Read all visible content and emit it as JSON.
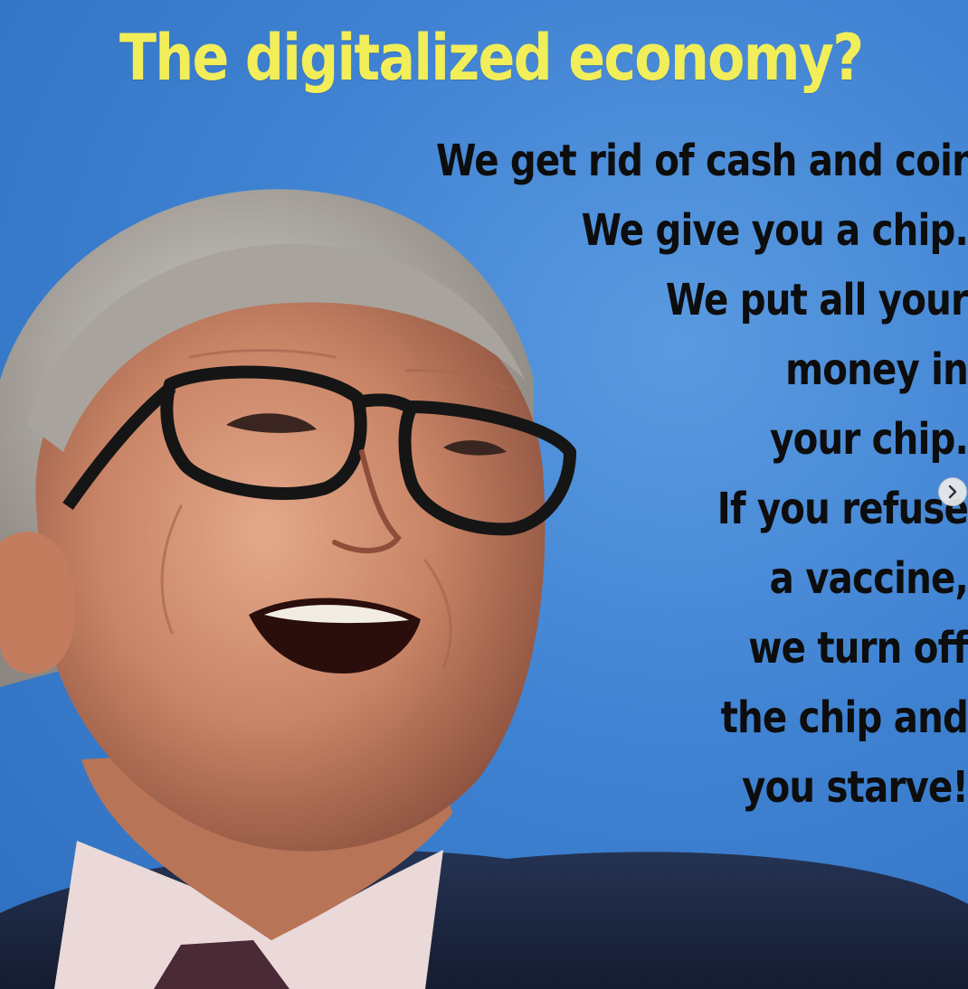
{
  "image": {
    "title": "The digitalized economy?",
    "lines": [
      "We get rid of cash and coins.",
      "We give you a chip.",
      "We put all your",
      "money in",
      "your chip.",
      "If you refuse",
      "a vaccine,",
      "we turn off",
      "the chip and",
      "you starve!"
    ],
    "colors": {
      "background": "#3f82d2",
      "title": "#f2ee5a",
      "text": "#0d0d0d"
    }
  },
  "carousel": {
    "next_icon": "chevron-right-icon"
  }
}
